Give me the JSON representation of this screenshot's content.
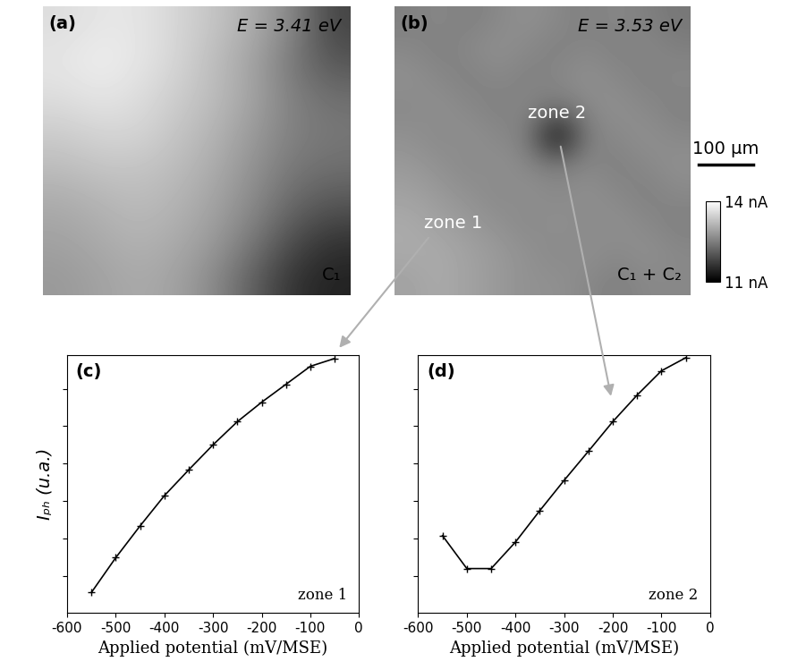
{
  "chart_data": [
    {
      "type": "heatmap",
      "title": "(a)",
      "annotations": [
        "E = 3.41 eV",
        "C₁"
      ],
      "cells": [
        [
          13.6,
          13.7,
          13.7,
          13.5,
          13.3,
          13.0,
          12.6,
          11.8
        ],
        [
          13.7,
          13.8,
          13.7,
          13.5,
          13.2,
          12.9,
          12.4,
          12.0
        ],
        [
          13.6,
          13.7,
          13.6,
          13.4,
          13.2,
          12.9,
          12.5,
          12.3
        ],
        [
          13.4,
          13.5,
          13.5,
          13.3,
          13.1,
          12.8,
          12.5,
          12.4
        ],
        [
          13.2,
          13.3,
          13.3,
          13.2,
          13.0,
          12.7,
          12.4,
          12.3
        ],
        [
          13.0,
          13.1,
          13.2,
          13.1,
          12.9,
          12.6,
          12.2,
          12.0
        ],
        [
          12.9,
          13.0,
          13.1,
          13.0,
          12.8,
          12.4,
          11.9,
          11.6
        ],
        [
          12.8,
          12.9,
          13.0,
          12.9,
          12.6,
          12.1,
          11.6,
          11.4
        ]
      ],
      "colorbar": {
        "range": [
          11,
          14
        ],
        "ticks": [
          {
            "value": 11,
            "label": "11 nA"
          },
          {
            "value": 14,
            "label": "14 nA"
          }
        ]
      }
    },
    {
      "type": "heatmap",
      "title": "(b)",
      "annotations": [
        "E = 3.53 eV",
        "C₁ + C₂",
        "zone 1",
        "zone 2"
      ],
      "scale_bar": "100 μm",
      "cells": [
        [
          12.5,
          12.6,
          12.5,
          12.6,
          12.7,
          12.6,
          12.5,
          12.6,
          12.5,
          12.4
        ],
        [
          12.6,
          12.5,
          12.6,
          12.7,
          12.6,
          12.5,
          12.6,
          12.5,
          12.6,
          12.5
        ],
        [
          12.7,
          12.6,
          12.5,
          12.6,
          12.5,
          12.6,
          12.7,
          12.6,
          12.5,
          12.6
        ],
        [
          12.6,
          12.7,
          12.6,
          12.5,
          12.6,
          12.4,
          12.6,
          12.7,
          12.6,
          12.5
        ],
        [
          12.7,
          12.6,
          12.7,
          12.6,
          12.5,
          11.0,
          12.5,
          12.6,
          12.7,
          12.6
        ],
        [
          12.8,
          12.7,
          12.6,
          12.7,
          12.6,
          12.5,
          12.6,
          12.5,
          12.6,
          12.7
        ],
        [
          12.9,
          12.8,
          12.7,
          12.6,
          12.7,
          12.6,
          12.7,
          12.6,
          12.5,
          12.6
        ],
        [
          13.0,
          12.9,
          12.8,
          12.7,
          12.6,
          12.7,
          12.6,
          12.7,
          12.6,
          12.5
        ],
        [
          13.0,
          13.0,
          12.9,
          12.8,
          12.7,
          12.6,
          12.7,
          12.6,
          12.7,
          12.6
        ],
        [
          12.9,
          13.0,
          12.9,
          12.8,
          12.7,
          12.7,
          12.6,
          12.5,
          12.6,
          12.6
        ]
      ],
      "colorbar": {
        "range": [
          11,
          14
        ],
        "ticks": [
          {
            "value": 11,
            "label": "11 nA"
          },
          {
            "value": 14,
            "label": "14 nA"
          }
        ]
      }
    },
    {
      "type": "line",
      "title": "(c)",
      "annotations": [
        "zone 1"
      ],
      "xlabel": "Applied potential (mV/MSE)",
      "ylabel": "Iₚₕ (u.a.)",
      "x": [
        -550,
        -500,
        -450,
        -400,
        -350,
        -300,
        -250,
        -200,
        -150,
        -100,
        -50
      ],
      "values": [
        0.55,
        1.48,
        2.33,
        3.14,
        3.83,
        4.5,
        5.12,
        5.64,
        6.12,
        6.6,
        6.81
      ],
      "xlim": [
        -600,
        0
      ],
      "xticks": [
        -600,
        -500,
        -400,
        -300,
        -200,
        -100,
        0
      ],
      "ylim": [
        0,
        6.9
      ],
      "yticks": [
        1,
        2,
        3,
        4,
        5,
        6
      ],
      "tick_labels": "x",
      "marker": "+",
      "color": "#000000"
    },
    {
      "type": "line",
      "title": "(d)",
      "annotations": [
        "zone 2"
      ],
      "xlabel": "Applied potential (mV/MSE)",
      "x": [
        -550,
        -500,
        -450,
        -400,
        -350,
        -300,
        -250,
        -200,
        -150,
        -100,
        -50
      ],
      "values": [
        2.07,
        1.19,
        1.19,
        1.9,
        2.74,
        3.55,
        4.33,
        5.12,
        5.83,
        6.48,
        6.83
      ],
      "xlim": [
        -600,
        0
      ],
      "xticks": [
        -600,
        -500,
        -400,
        -300,
        -200,
        -100,
        0
      ],
      "ylim": [
        0,
        6.9
      ],
      "yticks": [
        1,
        2,
        3,
        4,
        5,
        6
      ],
      "tick_labels": "x",
      "marker": "+",
      "color": "#000000"
    }
  ]
}
